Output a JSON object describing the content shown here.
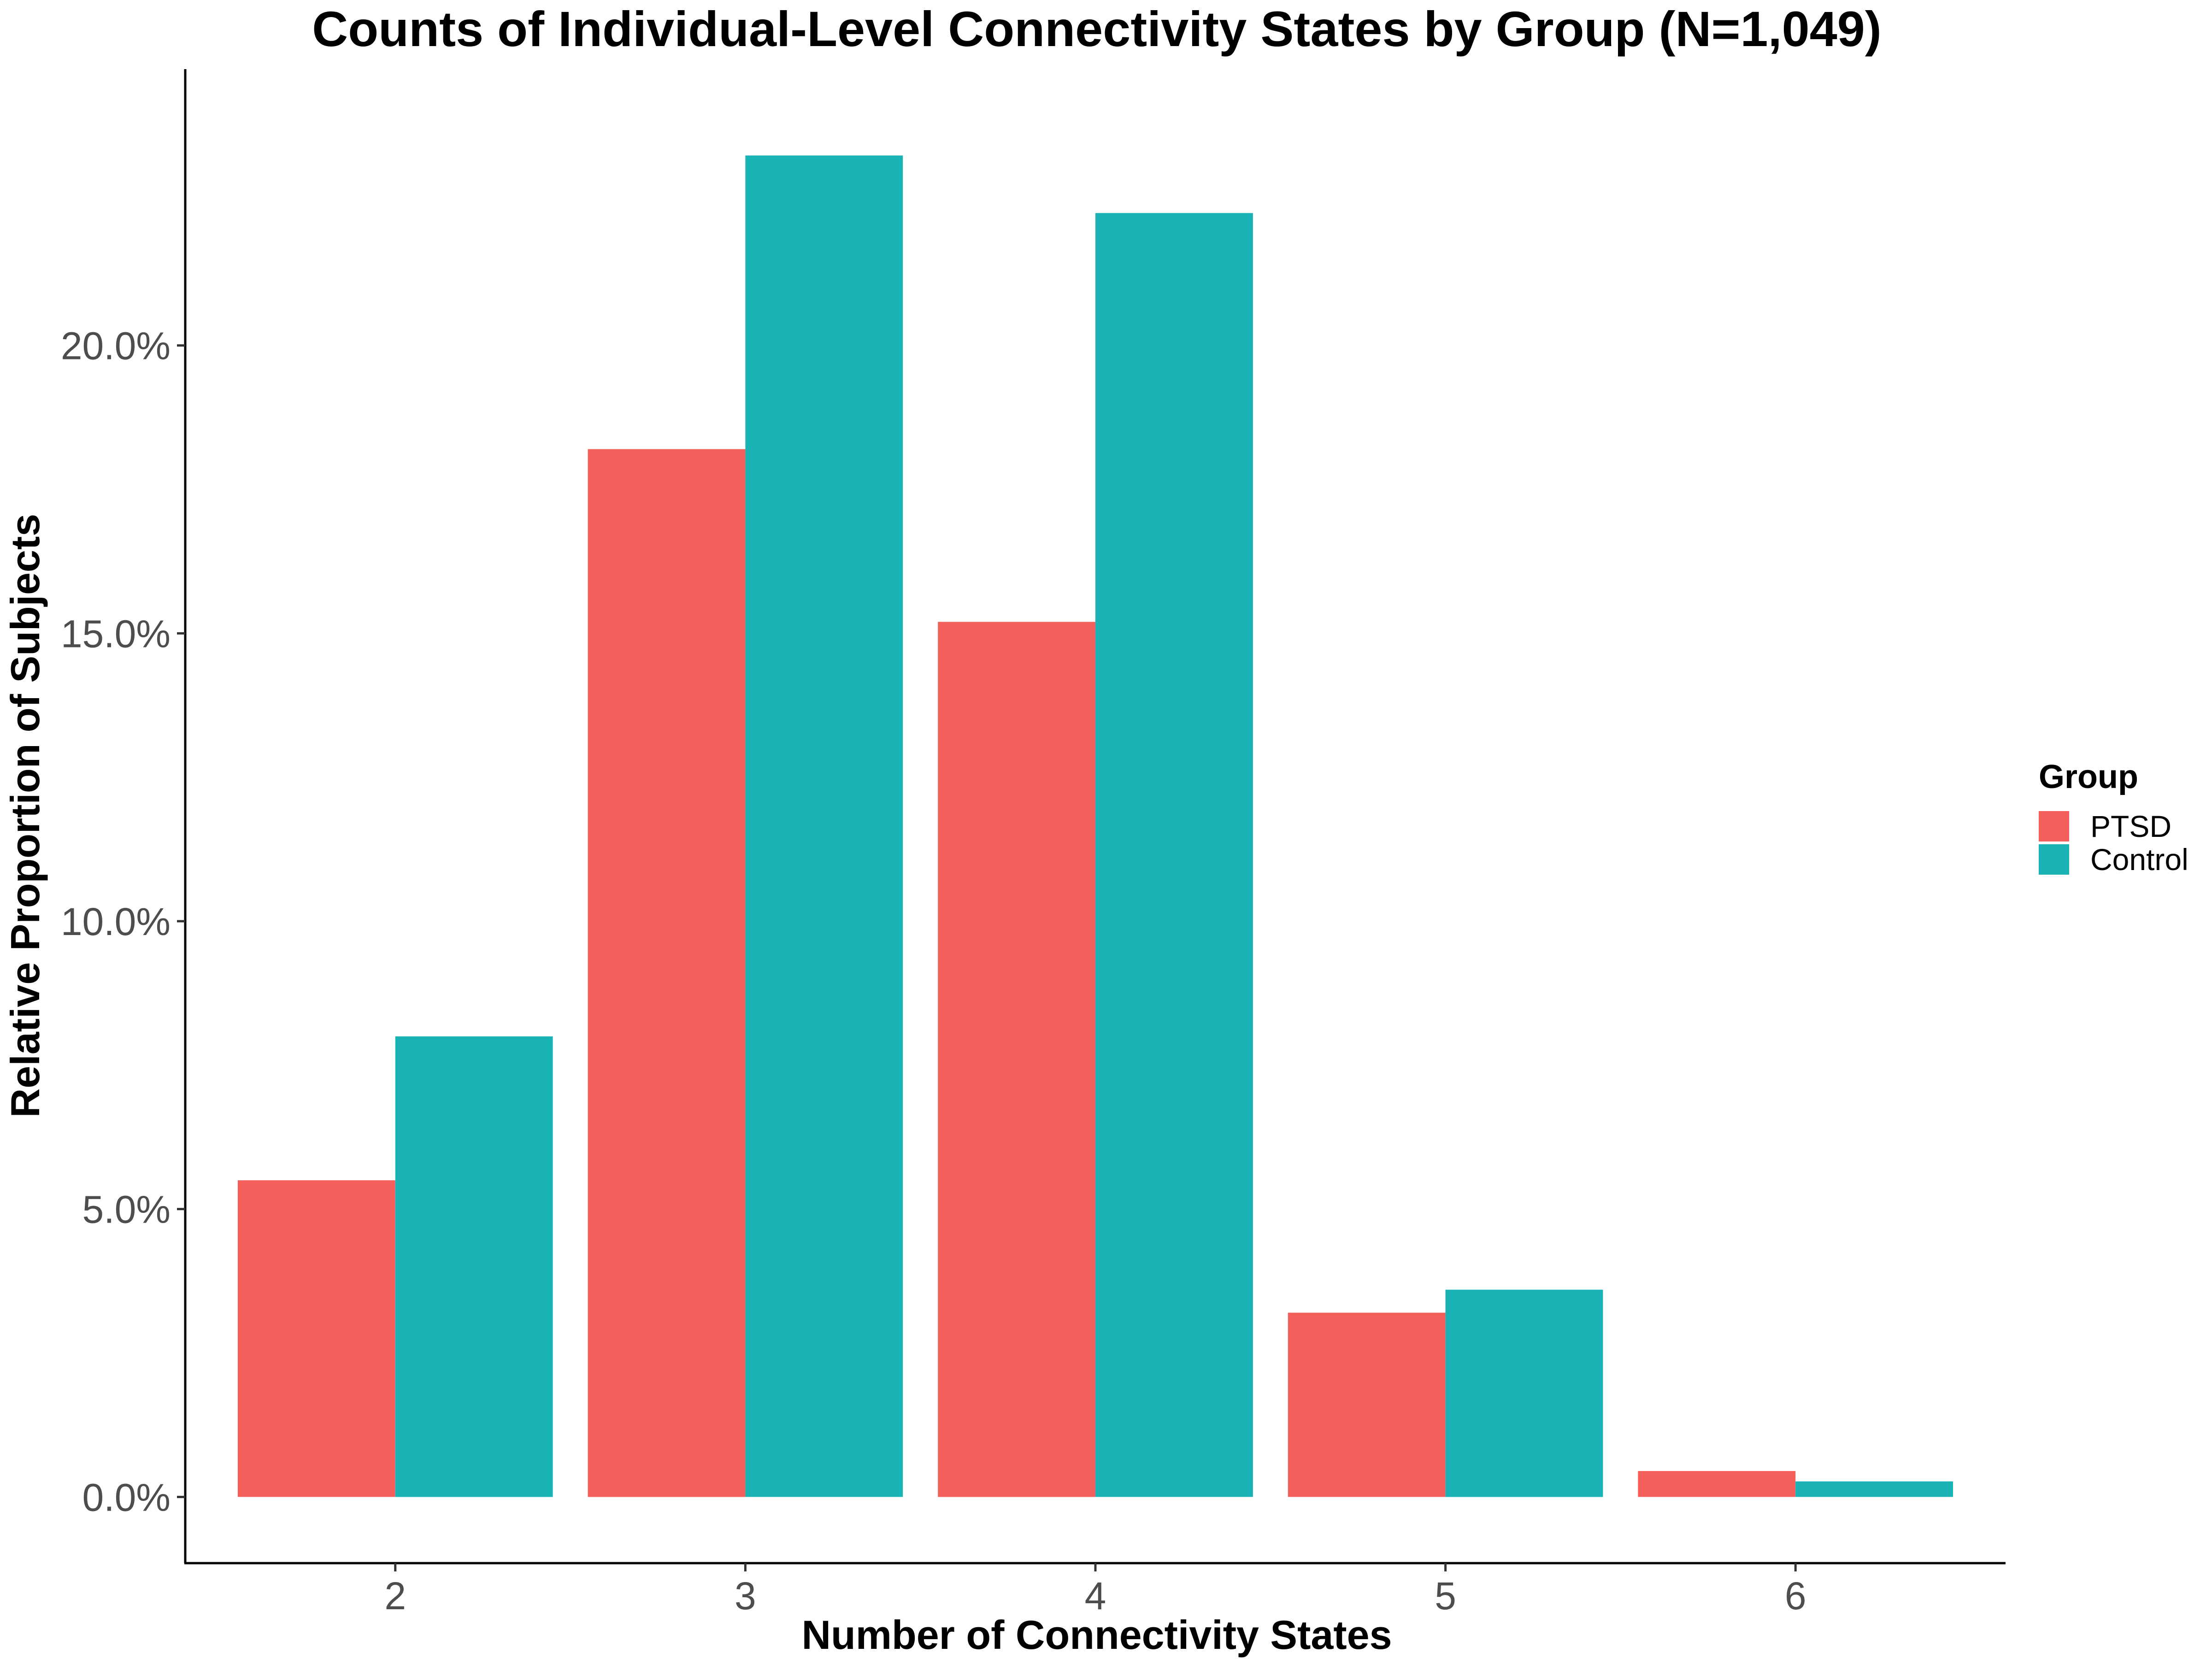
{
  "chart_data": {
    "type": "bar",
    "title": "Counts of Individual-Level Connectivity States by Group (N=1,049)",
    "xlabel": "Number of Connectivity States",
    "ylabel": "Relative Proportion of Subjects",
    "categories": [
      "2",
      "3",
      "4",
      "5",
      "6"
    ],
    "series": [
      {
        "name": "PTSD",
        "values": [
          5.5,
          18.2,
          15.2,
          3.2,
          0.45
        ]
      },
      {
        "name": "Control",
        "values": [
          8.0,
          23.3,
          22.3,
          3.6,
          0.27
        ]
      }
    ],
    "ylim": [
      -1.15,
      24.8
    ],
    "yticks": [
      0,
      5,
      10,
      15,
      20
    ],
    "ytick_labels": [
      "0.0%",
      "5.0%",
      "10.0%",
      "15.0%",
      "20.0%"
    ],
    "grid": false,
    "legend": {
      "title": "Group",
      "position": "right"
    },
    "colors": {
      "PTSD": "#F35F5B",
      "Control": "#19B3B6"
    }
  }
}
